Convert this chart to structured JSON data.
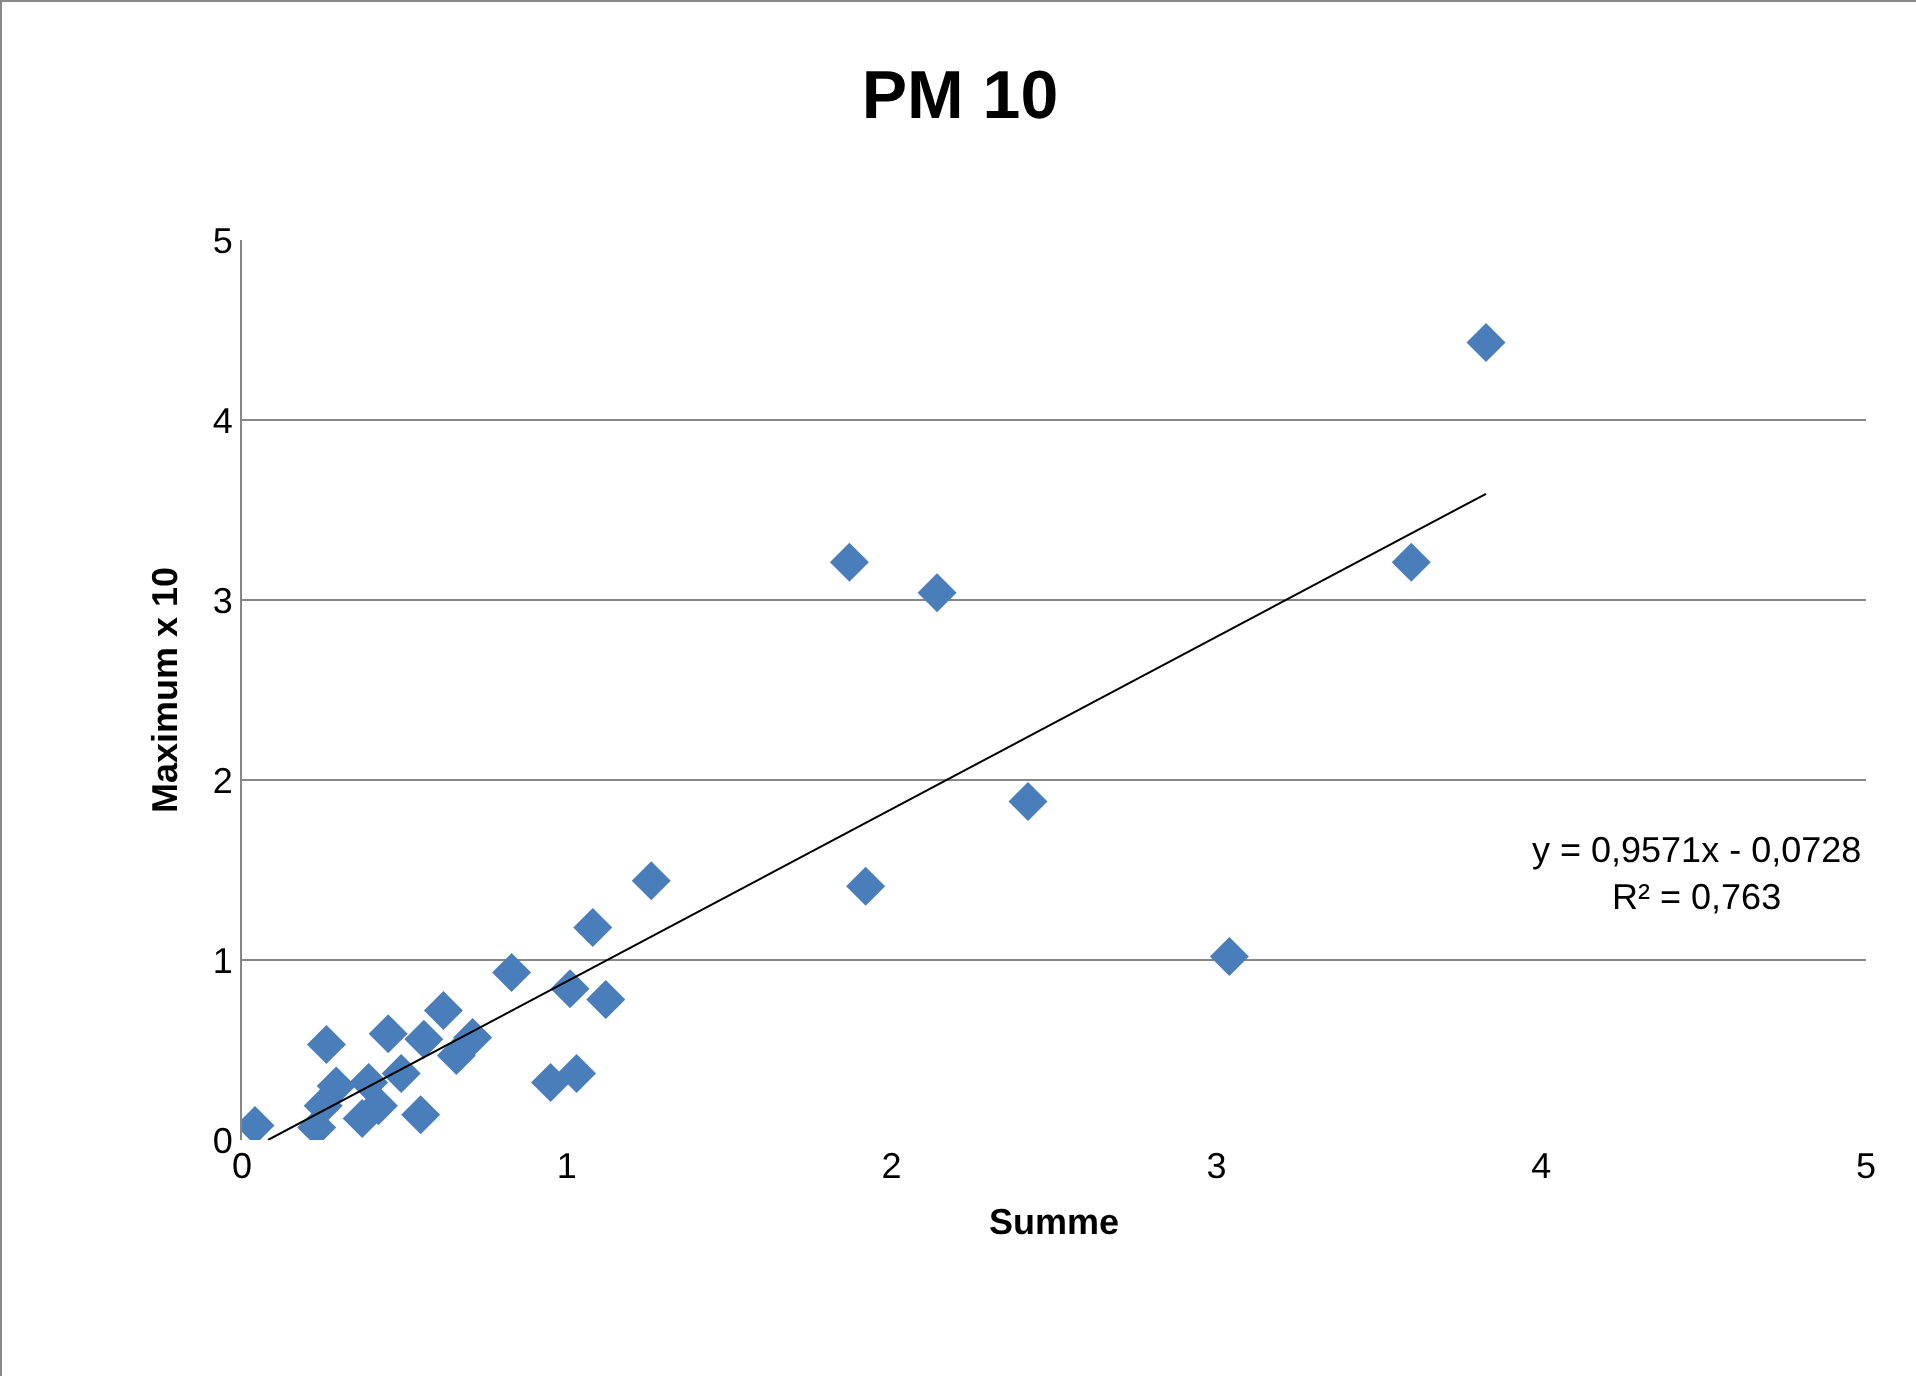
{
  "chart_data": {
    "type": "scatter",
    "title": "PM 10",
    "xlabel": "Summe",
    "ylabel": "Maximum x 10",
    "xlim": [
      0,
      5
    ],
    "xticks": [
      0,
      1,
      2,
      3,
      4,
      5
    ],
    "ylim": [
      0,
      5
    ],
    "yticks": [
      0,
      1,
      2,
      3,
      4,
      5
    ],
    "grid": "y",
    "annotations": [
      "y = 0,9571x - 0,0728\nR² = 0,763"
    ],
    "series": [
      {
        "marker": "diamond",
        "color": "#4a7ebb",
        "x": [
          0.04,
          0.23,
          0.26,
          0.29,
          0.25,
          0.37,
          0.39,
          0.42,
          0.45,
          0.49,
          0.55,
          0.56,
          0.62,
          0.66,
          0.71,
          0.83,
          0.95,
          1.01,
          1.03,
          1.08,
          1.12,
          1.26,
          1.87,
          2.14,
          2.42,
          1.92,
          3.04,
          3.6,
          3.83
        ],
        "values": [
          0.08,
          0.07,
          0.53,
          0.3,
          0.19,
          0.12,
          0.32,
          0.19,
          0.59,
          0.37,
          0.14,
          0.56,
          0.72,
          0.47,
          0.57,
          0.93,
          0.32,
          0.84,
          0.37,
          1.18,
          0.78,
          1.44,
          3.21,
          3.04,
          1.88,
          1.41,
          1.02,
          3.21,
          4.43
        ]
      },
      {
        "type": "line",
        "marker": "none",
        "color": "#000000",
        "x": [
          0.08,
          3.83
        ],
        "values": [
          0.0,
          3.59
        ]
      }
    ]
  }
}
